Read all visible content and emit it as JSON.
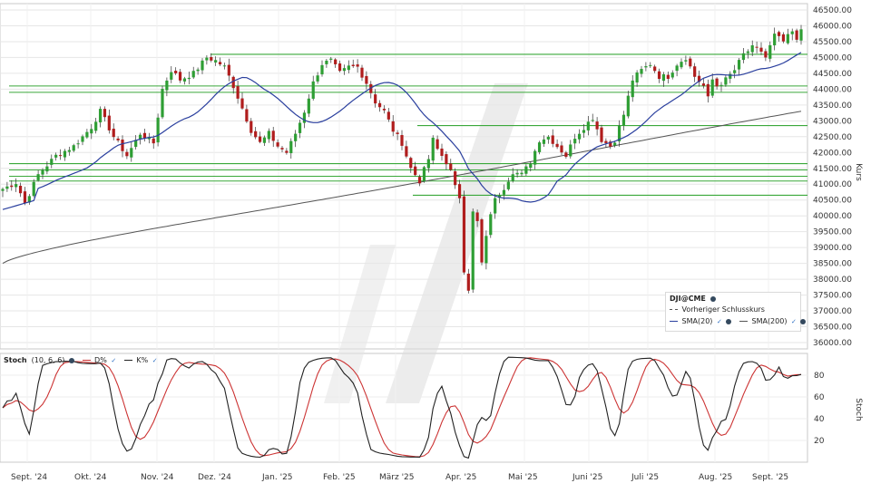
{
  "chart_data": [
    {
      "type": "candlestick",
      "instrument": "DJI@CME",
      "y_axis_label": "Kurs",
      "y_ticks": [
        "46500.00",
        "46000.00",
        "45500.00",
        "45000.00",
        "44500.00",
        "44000.00",
        "43500.00",
        "43000.00",
        "42500.00",
        "42000.00",
        "41500.00",
        "41000.00",
        "40500.00",
        "40000.00",
        "39500.00",
        "39000.00",
        "38500.00",
        "38000.00",
        "37500.00",
        "37000.00",
        "36500.00",
        "36000.00"
      ],
      "ylim": [
        35800,
        46700
      ],
      "x_ticks": [
        "Sept. '24",
        "Okt. '24",
        "Nov. '24",
        "Dez. '24",
        "Jan. '25",
        "Feb. '25",
        "März '25",
        "Apr. '25",
        "Mai '25",
        "Juni '25",
        "Juli '25",
        "Aug. '25",
        "Sept. '25"
      ],
      "support_resistance_levels": [
        45100,
        44100,
        43900,
        42850,
        41650,
        41450,
        41250,
        41100,
        40650
      ],
      "close_anchors": [
        [
          0,
          40850
        ],
        [
          3,
          41050
        ],
        [
          5,
          40400
        ],
        [
          8,
          41300
        ],
        [
          12,
          41900
        ],
        [
          16,
          42200
        ],
        [
          20,
          42800
        ],
        [
          22,
          43300
        ],
        [
          25,
          42500
        ],
        [
          28,
          41900
        ],
        [
          31,
          42600
        ],
        [
          34,
          42300
        ],
        [
          36,
          44000
        ],
        [
          38,
          44600
        ],
        [
          40,
          44300
        ],
        [
          43,
          44500
        ],
        [
          46,
          45000
        ],
        [
          48,
          44900
        ],
        [
          50,
          44700
        ],
        [
          52,
          44100
        ],
        [
          54,
          43400
        ],
        [
          56,
          42700
        ],
        [
          58,
          42300
        ],
        [
          60,
          42600
        ],
        [
          62,
          42200
        ],
        [
          64,
          42000
        ],
        [
          66,
          42600
        ],
        [
          68,
          43300
        ],
        [
          70,
          44200
        ],
        [
          72,
          44800
        ],
        [
          74,
          44900
        ],
        [
          76,
          44500
        ],
        [
          78,
          44700
        ],
        [
          80,
          44700
        ],
        [
          82,
          44200
        ],
        [
          84,
          43600
        ],
        [
          86,
          43300
        ],
        [
          88,
          42700
        ],
        [
          90,
          42300
        ],
        [
          92,
          41500
        ],
        [
          94,
          41100
        ],
        [
          96,
          41800
        ],
        [
          97,
          42400
        ],
        [
          98,
          42100
        ],
        [
          100,
          41700
        ],
        [
          101,
          41400
        ],
        [
          102,
          40900
        ],
        [
          103,
          40600
        ],
        [
          104,
          38300
        ],
        [
          105,
          37700
        ],
        [
          106,
          40100
        ],
        [
          107,
          39800
        ],
        [
          108,
          38500
        ],
        [
          109,
          39300
        ],
        [
          110,
          40100
        ],
        [
          111,
          40500
        ],
        [
          113,
          40900
        ],
        [
          115,
          41400
        ],
        [
          117,
          41300
        ],
        [
          119,
          41700
        ],
        [
          121,
          42400
        ],
        [
          123,
          42500
        ],
        [
          125,
          42200
        ],
        [
          127,
          41900
        ],
        [
          129,
          42500
        ],
        [
          131,
          42800
        ],
        [
          133,
          43100
        ],
        [
          135,
          42400
        ],
        [
          137,
          42200
        ],
        [
          138,
          42400
        ],
        [
          140,
          43200
        ],
        [
          142,
          44300
        ],
        [
          144,
          44600
        ],
        [
          146,
          44800
        ],
        [
          148,
          44400
        ],
        [
          150,
          44400
        ],
        [
          152,
          44800
        ],
        [
          154,
          45000
        ],
        [
          156,
          44400
        ],
        [
          158,
          44100
        ],
        [
          159,
          43700
        ],
        [
          160,
          44300
        ],
        [
          161,
          44100
        ],
        [
          163,
          44300
        ],
        [
          165,
          44600
        ],
        [
          167,
          45100
        ],
        [
          169,
          45300
        ],
        [
          171,
          45200
        ],
        [
          172,
          45000
        ],
        [
          174,
          45700
        ],
        [
          176,
          45500
        ],
        [
          178,
          45800
        ],
        [
          179,
          45500
        ],
        [
          180,
          45900
        ]
      ],
      "sma20_label": "SMA(20)",
      "sma200_label": "SMA(200)",
      "prev_close_label": "Vorheriger Schlusskurs",
      "colors": {
        "up": "#2e9e34",
        "down": "#b01d1d",
        "sma20": "#2a3f9e",
        "sma200": "#555555",
        "levels": "#3aa83a"
      }
    },
    {
      "type": "line",
      "indicator": "Stoch",
      "params": "(10, 6, 6)",
      "y_axis_label": "Stoch",
      "y_ticks": [
        "80",
        "60",
        "40",
        "20"
      ],
      "ylim": [
        0,
        100
      ],
      "series": [
        {
          "name": "D%",
          "color": "#cc3333"
        },
        {
          "name": "K%",
          "color": "#222222"
        }
      ]
    }
  ],
  "legend": {
    "instrument": "DJI@CME",
    "prev_close": "Vorheriger Schlusskurs",
    "sma20": "SMA(20)",
    "sma200": "SMA(200)"
  },
  "stoch_header": {
    "name": "Stoch",
    "params": "(10, 6, 6)",
    "d_label": "D%",
    "k_label": "K%"
  }
}
